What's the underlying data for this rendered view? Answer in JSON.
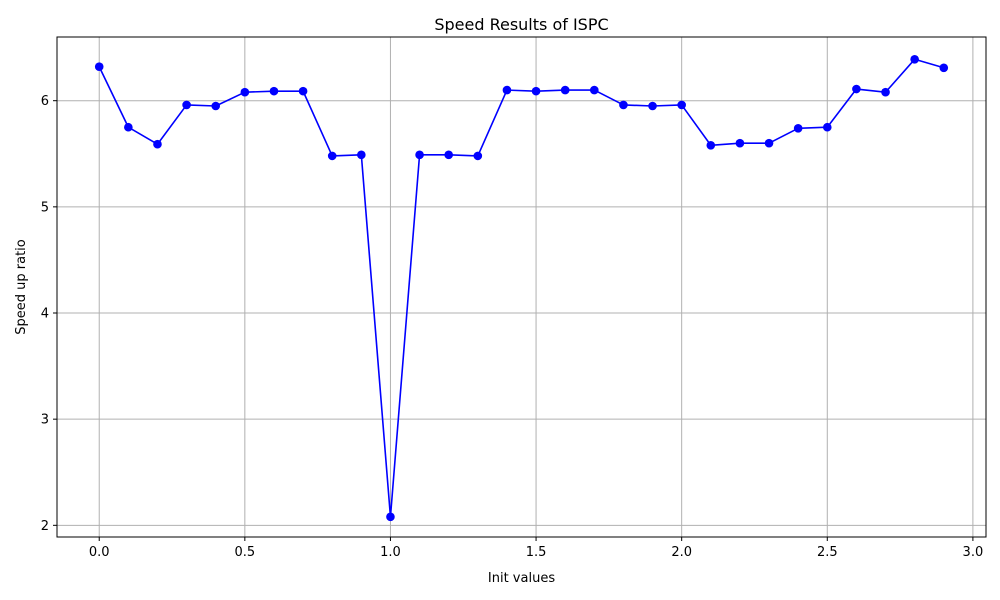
{
  "chart_data": {
    "type": "line",
    "title": "Speed Results of ISPC",
    "xlabel": "Init values",
    "ylabel": "Speed up ratio",
    "xlim": [
      -0.145,
      3.045
    ],
    "ylim": [
      1.89,
      6.6
    ],
    "x_ticks": [
      0.0,
      0.5,
      1.0,
      1.5,
      2.0,
      2.5,
      3.0
    ],
    "x_tick_labels": [
      "0.0",
      "0.5",
      "1.0",
      "1.5",
      "2.0",
      "2.5",
      "3.0"
    ],
    "y_ticks": [
      2,
      3,
      4,
      5,
      6
    ],
    "y_tick_labels": [
      "2",
      "3",
      "4",
      "5",
      "6"
    ],
    "grid": true,
    "series": [
      {
        "color": "#0000ff",
        "marker": "circle",
        "x": [
          0.0,
          0.1,
          0.2,
          0.3,
          0.4,
          0.5,
          0.6,
          0.7,
          0.8,
          0.9,
          1.0,
          1.1,
          1.2,
          1.3,
          1.4,
          1.5,
          1.6,
          1.7,
          1.8,
          1.9,
          2.0,
          2.1,
          2.2,
          2.3,
          2.4,
          2.5,
          2.6,
          2.7,
          2.8,
          2.9
        ],
        "y": [
          6.32,
          5.75,
          5.59,
          5.96,
          5.95,
          6.08,
          6.09,
          6.09,
          5.48,
          5.49,
          2.08,
          5.49,
          5.49,
          5.48,
          6.1,
          6.09,
          6.1,
          6.1,
          5.96,
          5.95,
          5.96,
          5.58,
          5.6,
          5.6,
          5.74,
          5.75,
          6.11,
          6.08,
          6.39,
          6.31
        ]
      }
    ]
  }
}
